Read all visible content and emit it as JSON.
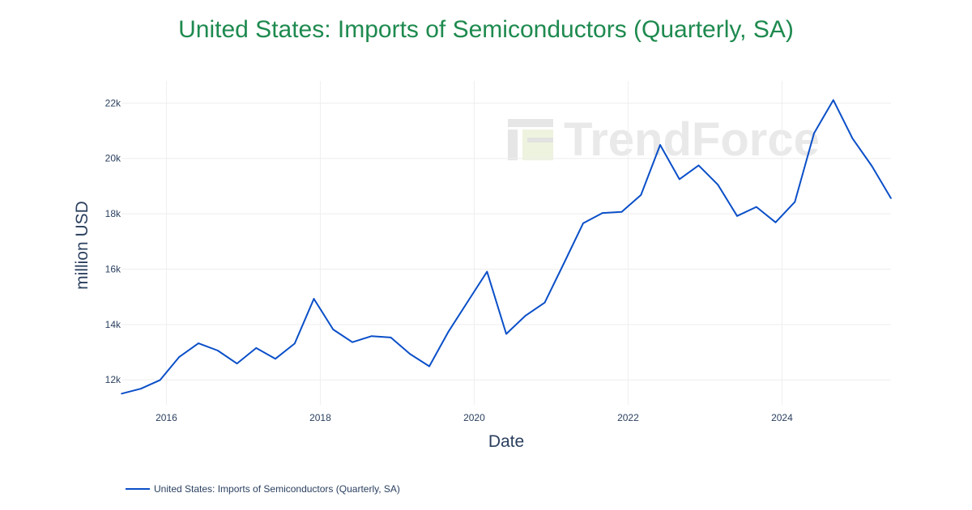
{
  "colors": {
    "title": "#1e8a4f",
    "line": "#0a4fc8",
    "grid": "#eeeeee",
    "text": "#2a3f5f",
    "watermark": "#e9e9e9"
  },
  "watermark": {
    "text": "TrendForce"
  },
  "chart_data": {
    "type": "line",
    "title": "United States: Imports of Semiconductors (Quarterly, SA)",
    "xlabel": "Date",
    "ylabel": "million USD",
    "x_ticks": [
      "2016",
      "2018",
      "2020",
      "2022",
      "2024"
    ],
    "y_ticks": [
      "12k",
      "14k",
      "16k",
      "18k",
      "20k",
      "22k"
    ],
    "y_tick_values": [
      12000,
      14000,
      16000,
      18000,
      20000,
      22000
    ],
    "xlim": [
      "2015-06",
      "2025-06"
    ],
    "ylim": [
      11100,
      22800
    ],
    "grid": true,
    "legend_position": "bottom-left",
    "series": [
      {
        "name": "United States: Imports of Semiconductors (Quarterly, SA)",
        "x": [
          "2015-06",
          "2015-09",
          "2015-12",
          "2016-03",
          "2016-06",
          "2016-09",
          "2016-12",
          "2017-03",
          "2017-06",
          "2017-09",
          "2017-12",
          "2018-03",
          "2018-06",
          "2018-09",
          "2018-12",
          "2019-03",
          "2019-06",
          "2019-09",
          "2019-12",
          "2020-03",
          "2020-06",
          "2020-09",
          "2020-12",
          "2021-03",
          "2021-06",
          "2021-09",
          "2021-12",
          "2022-03",
          "2022-06",
          "2022-09",
          "2022-12",
          "2023-03",
          "2023-06",
          "2023-09",
          "2023-12",
          "2024-03",
          "2024-06",
          "2024-09",
          "2024-12",
          "2025-03",
          "2025-06"
        ],
        "values": [
          11500,
          11680,
          11990,
          12830,
          13320,
          13060,
          12590,
          13150,
          12760,
          13310,
          14930,
          13820,
          13360,
          13580,
          13530,
          12930,
          12490,
          13750,
          14830,
          15910,
          13660,
          14320,
          14790,
          16220,
          17660,
          18030,
          18070,
          18680,
          20490,
          19250,
          19750,
          19050,
          17920,
          18250,
          17690,
          18430,
          20910,
          22110,
          20720,
          19730,
          18560
        ]
      }
    ]
  }
}
